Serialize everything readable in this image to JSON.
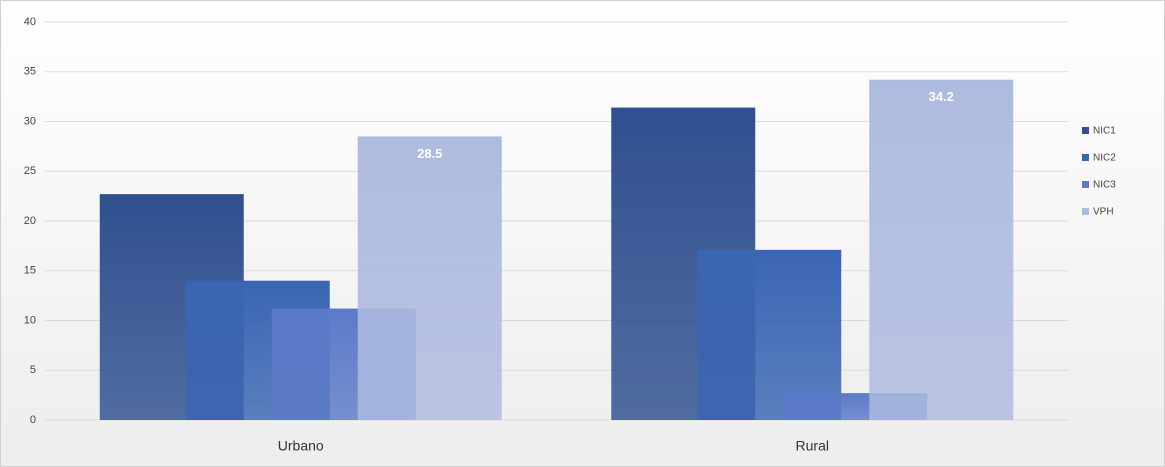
{
  "chart_data": {
    "type": "bar",
    "categories": [
      "Urbano",
      "Rural"
    ],
    "series": [
      {
        "name": "NIC1",
        "color": "#2f4f8f",
        "values": [
          22.7,
          31.4
        ]
      },
      {
        "name": "NIC2",
        "color": "#3a65b3",
        "values": [
          14.0,
          17.1
        ]
      },
      {
        "name": "NIC3",
        "color": "#5b7ac8",
        "values": [
          11.2,
          2.7
        ]
      },
      {
        "name": "VPH",
        "color": "#aebbe0",
        "values": [
          28.5,
          34.2
        ],
        "show_labels": true
      }
    ],
    "ylim": [
      0,
      40
    ],
    "yticks": [
      0,
      5,
      10,
      15,
      20,
      25,
      30,
      35,
      40
    ],
    "grid": true,
    "legend": "right"
  }
}
